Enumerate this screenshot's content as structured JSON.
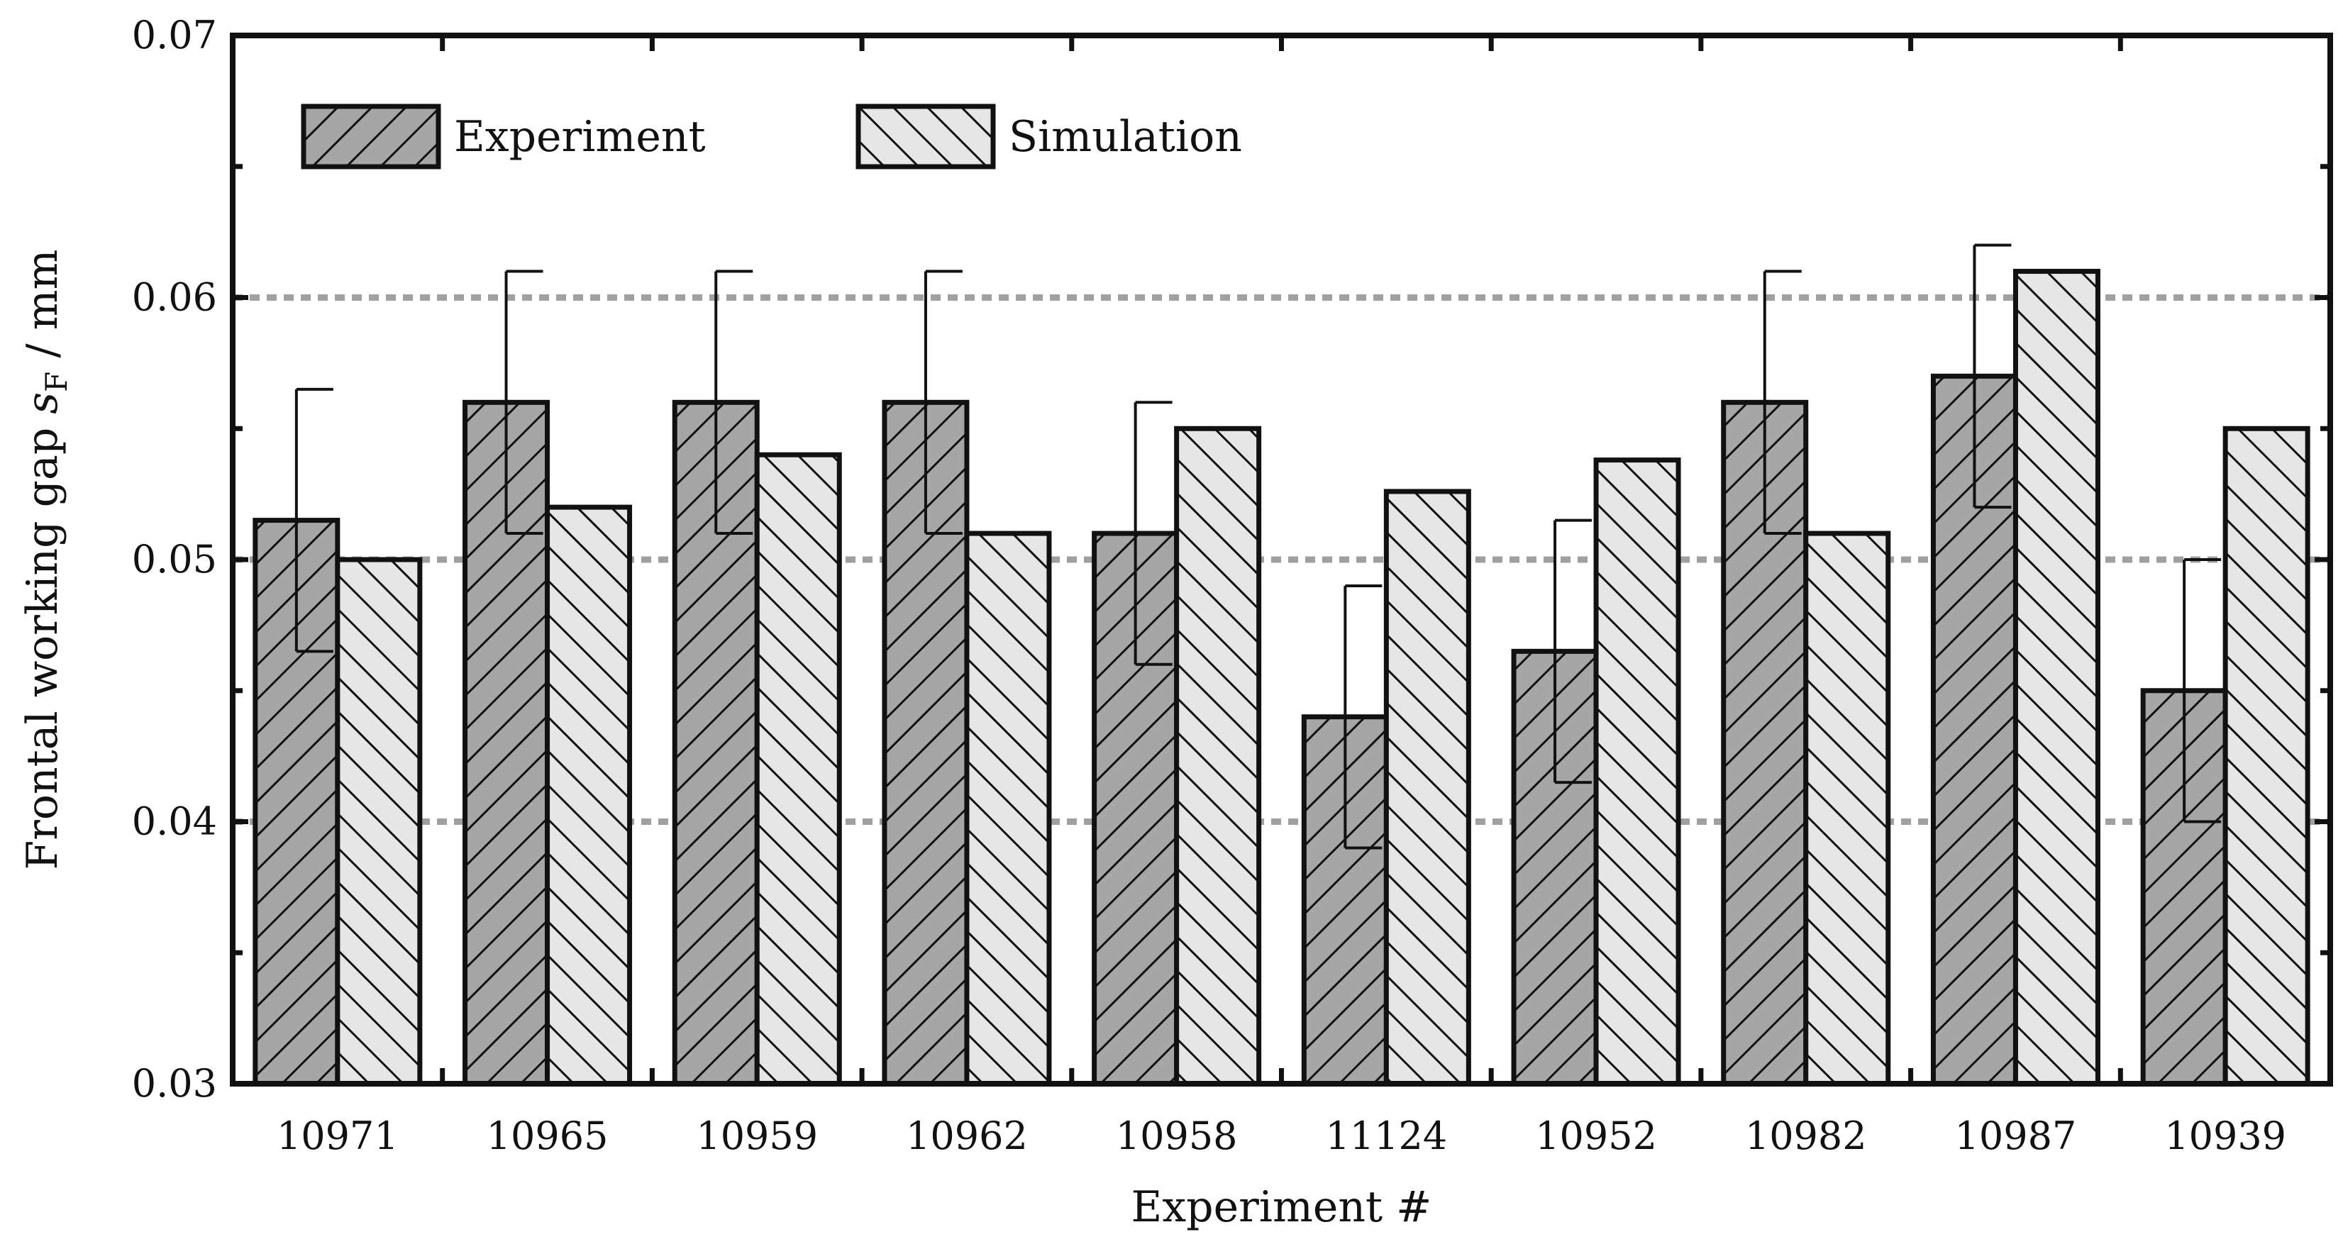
{
  "chart_data": {
    "type": "bar",
    "xlabel": "Experiment #",
    "ylabel": {
      "prefix": "Frontal working gap ",
      "symbol": "s",
      "subscript": "F",
      "suffix": " / mm"
    },
    "ylim": [
      0.03,
      0.07
    ],
    "yticks": [
      "0.03",
      "0.04",
      "0.05",
      "0.06",
      "0.07"
    ],
    "grid": {
      "on": true,
      "style": "dotted",
      "lines": [
        0.04,
        0.05,
        0.06
      ]
    },
    "legend": {
      "placement": "top-left"
    },
    "categories": [
      "10971",
      "10965",
      "10959",
      "10962",
      "10958",
      "11124",
      "10952",
      "10982",
      "10987",
      "10939"
    ],
    "series": [
      {
        "name": "Experiment",
        "values": [
          0.0515,
          0.056,
          0.056,
          0.056,
          0.051,
          0.044,
          0.0465,
          0.056,
          0.057,
          0.045
        ],
        "error": [
          0.005,
          0.005,
          0.005,
          0.005,
          0.005,
          0.005,
          0.005,
          0.005,
          0.005,
          0.005
        ],
        "fill": "#a6a6a6",
        "hatch": "forward"
      },
      {
        "name": "Simulation",
        "values": [
          0.05,
          0.052,
          0.054,
          0.051,
          0.055,
          0.0526,
          0.0538,
          0.051,
          0.061,
          0.055
        ],
        "fill": "#e6e6e6",
        "hatch": "backward"
      }
    ]
  }
}
